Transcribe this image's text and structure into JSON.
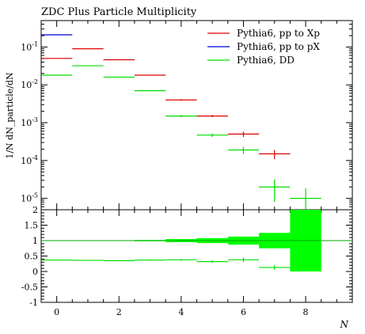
{
  "chart_data": [
    {
      "type": "line",
      "panel": "main",
      "title": "ZDC Plus Particle Multiplicity",
      "ylabel": "1/N dN_particle/dN",
      "yscale": "log",
      "ylim": [
        5e-06,
        0.5
      ],
      "xlim": [
        -0.5,
        9.5
      ],
      "y_tick_labels": [
        "10^-5",
        "10^-4",
        "10^-3",
        "10^-2",
        "10^-1"
      ],
      "y_tick_values": [
        1e-05,
        0.0001,
        0.001,
        0.01,
        0.1
      ],
      "legend_position": "top-right",
      "series": [
        {
          "name": "Pythia6, pp to Xp",
          "color": "#dd0000",
          "x": [
            0,
            1,
            2,
            3,
            4,
            5,
            6,
            7
          ],
          "values": [
            0.05,
            0.09,
            0.046,
            0.018,
            0.004,
            0.0015,
            0.0005,
            0.00015
          ],
          "yerr": [
            0,
            0,
            0,
            0,
            0.0002,
            0.0001,
            8e-05,
            4e-05
          ]
        },
        {
          "name": "Pythia6, pp to pX",
          "color": "#0000dd",
          "x": [
            0
          ],
          "values": [
            0.21
          ],
          "yerr": [
            0
          ]
        },
        {
          "name": "Pythia6, DD",
          "color": "#00dd00",
          "x": [
            0,
            1,
            2,
            3,
            4,
            5,
            6,
            7,
            8
          ],
          "values": [
            0.018,
            0.032,
            0.016,
            0.007,
            0.0015,
            0.00047,
            0.00019,
            2e-05,
            1e-05
          ],
          "yerr": [
            0,
            0,
            0,
            0,
            0.0001,
            5e-05,
            4e-05,
            1.2e-05,
            8.5e-06
          ]
        }
      ]
    },
    {
      "type": "line",
      "panel": "ratio",
      "xlabel": "N",
      "ylim": [
        -1,
        2
      ],
      "xlim": [
        -0.5,
        9.5
      ],
      "x_ticks": [
        0,
        2,
        4,
        6,
        8
      ],
      "x_tick_labels": [
        "0",
        "2",
        "4",
        "6",
        "8"
      ],
      "y_ticks": [
        -1,
        -0.5,
        0,
        0.5,
        1,
        1.5,
        2
      ],
      "y_tick_labels": [
        "-1",
        "-0.5",
        "0",
        "0.5",
        "1",
        "1.5",
        "2"
      ],
      "reference_line": 1,
      "band": {
        "color": "#00ff00",
        "x": [
          0,
          1,
          2,
          3,
          4,
          5,
          6,
          7,
          8
        ],
        "half_width": [
          0.01,
          0.01,
          0.01,
          0.02,
          0.05,
          0.08,
          0.13,
          0.25,
          1.0
        ]
      },
      "series": [
        {
          "name": "Pythia6, DD",
          "color": "#00dd00",
          "x": [
            0,
            1,
            2,
            3,
            4,
            5,
            6,
            7
          ],
          "values": [
            0.37,
            0.36,
            0.35,
            0.37,
            0.38,
            0.32,
            0.38,
            0.13
          ],
          "yerr": [
            0,
            0,
            0,
            0.02,
            0.03,
            0.04,
            0.07,
            0.08
          ]
        }
      ]
    }
  ]
}
